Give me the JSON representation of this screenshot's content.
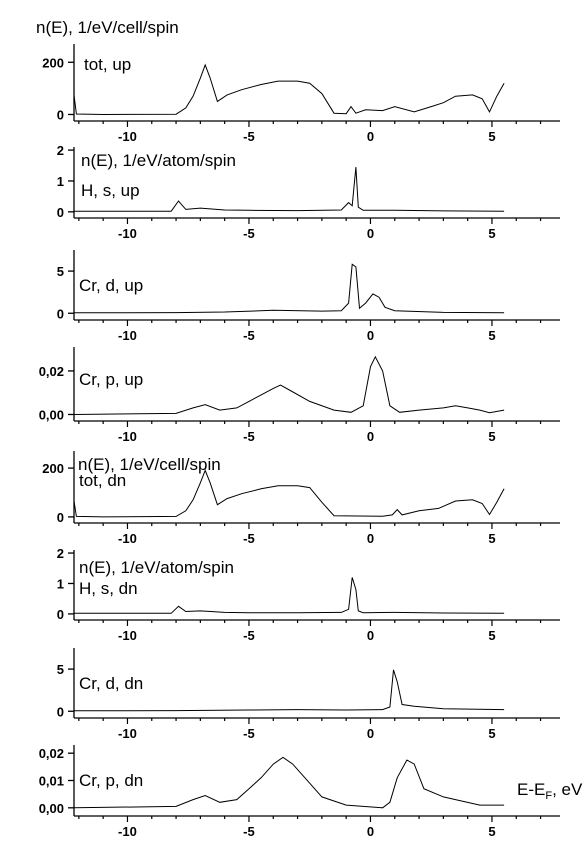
{
  "chart_data": {
    "type": "line",
    "title": "n(E), 1/eV/cell/spin",
    "xlabel": "E-E_F, eV",
    "xlim": [
      -12.2,
      7.8
    ],
    "x_ticks": [
      "-10",
      "-5",
      "0",
      "5"
    ],
    "panels": [
      {
        "label": "tot, up",
        "ylim": [
          -25,
          270
        ],
        "y_ticks": [
          {
            "v": 200,
            "t": "200"
          },
          {
            "v": 0,
            "t": "0"
          }
        ],
        "points": [
          [
            -12.2,
            75
          ],
          [
            -12.1,
            2
          ],
          [
            -11,
            0
          ],
          [
            -8,
            1
          ],
          [
            -7.6,
            25
          ],
          [
            -7.3,
            70
          ],
          [
            -7.0,
            140
          ],
          [
            -6.8,
            190
          ],
          [
            -6.6,
            140
          ],
          [
            -6.3,
            50
          ],
          [
            -5.9,
            75
          ],
          [
            -5.3,
            95
          ],
          [
            -4.5,
            115
          ],
          [
            -3.8,
            128
          ],
          [
            -3,
            128
          ],
          [
            -2.5,
            120
          ],
          [
            -2,
            80
          ],
          [
            -1.5,
            5
          ],
          [
            -1,
            3
          ],
          [
            -0.8,
            30
          ],
          [
            -0.6,
            5
          ],
          [
            -0.2,
            18
          ],
          [
            0.5,
            15
          ],
          [
            1,
            30
          ],
          [
            1.8,
            10
          ],
          [
            2.5,
            30
          ],
          [
            3,
            45
          ],
          [
            3.5,
            70
          ],
          [
            4.2,
            75
          ],
          [
            4.6,
            60
          ],
          [
            4.9,
            10
          ],
          [
            5.2,
            70
          ],
          [
            5.5,
            120
          ]
        ]
      },
      {
        "label": "H, s, up",
        "axis_title": "n(E), 1/eV/atom/spin",
        "ylim": [
          -0.2,
          2.1
        ],
        "y_ticks": [
          {
            "v": 2,
            "t": "2"
          },
          {
            "v": 1,
            "t": "1"
          },
          {
            "v": 0,
            "t": "0"
          }
        ],
        "points": [
          [
            -12.2,
            0.02
          ],
          [
            -8.2,
            0.02
          ],
          [
            -7.9,
            0.35
          ],
          [
            -7.6,
            0.08
          ],
          [
            -7,
            0.12
          ],
          [
            -6,
            0.06
          ],
          [
            -5,
            0.05
          ],
          [
            -3,
            0.04
          ],
          [
            -1.2,
            0.06
          ],
          [
            -0.9,
            0.3
          ],
          [
            -0.75,
            0.2
          ],
          [
            -0.6,
            1.45
          ],
          [
            -0.5,
            0.15
          ],
          [
            -0.3,
            0.05
          ],
          [
            1,
            0.05
          ],
          [
            3,
            0.03
          ],
          [
            5.5,
            0.02
          ]
        ]
      },
      {
        "label": "Cr, d, up",
        "ylim": [
          -0.8,
          7.5
        ],
        "y_ticks": [
          {
            "v": 5,
            "t": "5"
          },
          {
            "v": 0,
            "t": "0"
          }
        ],
        "points": [
          [
            -12.2,
            0.05
          ],
          [
            -8,
            0.08
          ],
          [
            -6,
            0.15
          ],
          [
            -4,
            0.35
          ],
          [
            -2,
            0.25
          ],
          [
            -1.2,
            0.3
          ],
          [
            -0.9,
            1.2
          ],
          [
            -0.75,
            5.8
          ],
          [
            -0.6,
            5.5
          ],
          [
            -0.45,
            0.6
          ],
          [
            -0.2,
            1.2
          ],
          [
            0.1,
            2.3
          ],
          [
            0.35,
            1.9
          ],
          [
            0.6,
            0.7
          ],
          [
            1,
            0.3
          ],
          [
            3,
            0.1
          ],
          [
            5.5,
            0.05
          ]
        ]
      },
      {
        "label": "Cr, p, up",
        "ylim": [
          -0.003,
          0.031
        ],
        "y_ticks": [
          {
            "v": 0.02,
            "t": "0,02"
          },
          {
            "v": 0.0,
            "t": "0,00"
          }
        ],
        "points": [
          [
            -12.2,
            0
          ],
          [
            -8,
            0.0005
          ],
          [
            -7.3,
            0.003
          ],
          [
            -6.8,
            0.0045
          ],
          [
            -6.2,
            0.002
          ],
          [
            -5.5,
            0.003
          ],
          [
            -5,
            0.006
          ],
          [
            -4.5,
            0.009
          ],
          [
            -4,
            0.012
          ],
          [
            -3.7,
            0.0135
          ],
          [
            -3.3,
            0.011
          ],
          [
            -2.5,
            0.006
          ],
          [
            -1.5,
            0.002
          ],
          [
            -0.8,
            0.001
          ],
          [
            -0.3,
            0.004
          ],
          [
            0,
            0.022
          ],
          [
            0.2,
            0.0265
          ],
          [
            0.5,
            0.02
          ],
          [
            0.8,
            0.004
          ],
          [
            1.2,
            0.001
          ],
          [
            2,
            0.002
          ],
          [
            3,
            0.003
          ],
          [
            3.5,
            0.004
          ],
          [
            4,
            0.003
          ],
          [
            4.5,
            0.002
          ],
          [
            4.9,
            0.0008
          ],
          [
            5.5,
            0.002
          ]
        ]
      },
      {
        "label": "tot, dn",
        "axis_title": "n(E), 1/eV/cell/spin",
        "ylim": [
          -25,
          270
        ],
        "y_ticks": [
          {
            "v": 200,
            "t": "200"
          },
          {
            "v": 0,
            "t": "0"
          }
        ],
        "points": [
          [
            -12.2,
            65
          ],
          [
            -12.1,
            2
          ],
          [
            -11,
            0
          ],
          [
            -8,
            2
          ],
          [
            -7.6,
            25
          ],
          [
            -7.3,
            70
          ],
          [
            -7.0,
            140
          ],
          [
            -6.8,
            190
          ],
          [
            -6.6,
            140
          ],
          [
            -6.3,
            50
          ],
          [
            -5.9,
            75
          ],
          [
            -5.3,
            95
          ],
          [
            -4.5,
            115
          ],
          [
            -3.8,
            128
          ],
          [
            -3,
            128
          ],
          [
            -2.5,
            120
          ],
          [
            -2,
            60
          ],
          [
            -1.5,
            5
          ],
          [
            0.5,
            3
          ],
          [
            0.9,
            8
          ],
          [
            1.1,
            30
          ],
          [
            1.3,
            8
          ],
          [
            2,
            25
          ],
          [
            2.8,
            35
          ],
          [
            3.5,
            65
          ],
          [
            4.2,
            70
          ],
          [
            4.6,
            55
          ],
          [
            4.9,
            10
          ],
          [
            5.2,
            60
          ],
          [
            5.5,
            115
          ]
        ]
      },
      {
        "label": "H, s, dn",
        "axis_title": "n(E), 1/eV/atom/spin",
        "ylim": [
          -0.2,
          2.1
        ],
        "y_ticks": [
          {
            "v": 2,
            "t": "2"
          },
          {
            "v": 1,
            "t": "1"
          },
          {
            "v": 0,
            "t": "0"
          }
        ],
        "points": [
          [
            -12.2,
            0.02
          ],
          [
            -8.2,
            0.02
          ],
          [
            -7.9,
            0.25
          ],
          [
            -7.6,
            0.08
          ],
          [
            -7,
            0.1
          ],
          [
            -6,
            0.05
          ],
          [
            -5,
            0.04
          ],
          [
            -3,
            0.04
          ],
          [
            -1.2,
            0.05
          ],
          [
            -0.9,
            0.15
          ],
          [
            -0.75,
            1.2
          ],
          [
            -0.6,
            0.8
          ],
          [
            -0.5,
            0.1
          ],
          [
            -0.3,
            0.04
          ],
          [
            1,
            0.05
          ],
          [
            3,
            0.03
          ],
          [
            5.5,
            0.02
          ]
        ]
      },
      {
        "label": "Cr, d, dn",
        "ylim": [
          -0.8,
          7.5
        ],
        "y_ticks": [
          {
            "v": 5,
            "t": "5"
          },
          {
            "v": 0,
            "t": "0"
          }
        ],
        "points": [
          [
            -12.2,
            0.05
          ],
          [
            -8,
            0.08
          ],
          [
            -5,
            0.15
          ],
          [
            -3,
            0.2
          ],
          [
            -1,
            0.15
          ],
          [
            0.5,
            0.2
          ],
          [
            0.8,
            0.5
          ],
          [
            0.95,
            4.9
          ],
          [
            1.1,
            3.5
          ],
          [
            1.3,
            0.8
          ],
          [
            1.8,
            0.6
          ],
          [
            3,
            0.3
          ],
          [
            5.5,
            0.2
          ]
        ]
      },
      {
        "label": "Cr, p, dn",
        "ylim": [
          -0.003,
          0.023
        ],
        "y_ticks": [
          {
            "v": 0.02,
            "t": "0,02"
          },
          {
            "v": 0.01,
            "t": "0,01"
          },
          {
            "v": 0.0,
            "t": "0,00"
          }
        ],
        "points": [
          [
            -12.2,
            0
          ],
          [
            -8,
            0.0005
          ],
          [
            -7.3,
            0.003
          ],
          [
            -6.8,
            0.0045
          ],
          [
            -6.2,
            0.002
          ],
          [
            -5.5,
            0.003
          ],
          [
            -5,
            0.007
          ],
          [
            -4.5,
            0.011
          ],
          [
            -4,
            0.016
          ],
          [
            -3.6,
            0.0185
          ],
          [
            -3.2,
            0.016
          ],
          [
            -2.5,
            0.009
          ],
          [
            -2,
            0.004
          ],
          [
            -1,
            0.001
          ],
          [
            0.5,
            0
          ],
          [
            0.8,
            0.002
          ],
          [
            1.1,
            0.011
          ],
          [
            1.5,
            0.0175
          ],
          [
            1.8,
            0.016
          ],
          [
            2.2,
            0.007
          ],
          [
            3,
            0.004
          ],
          [
            3.5,
            0.003
          ],
          [
            4.5,
            0.001
          ],
          [
            5.5,
            0.001
          ]
        ]
      }
    ]
  }
}
